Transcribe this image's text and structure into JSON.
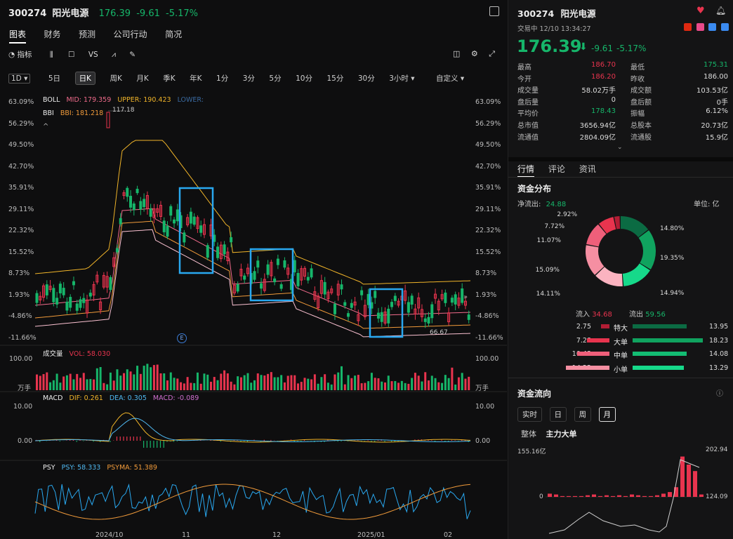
{
  "header": {
    "code": "300274",
    "name": "阳光电源",
    "price": "176.39",
    "change": "-9.61",
    "pct": "-5.17%"
  },
  "tabs": [
    "图表",
    "财务",
    "预测",
    "公司行动",
    "简况"
  ],
  "toolbar": {
    "indicator": "指标",
    "vs": "VS"
  },
  "timeframes": [
    "5日",
    "日K",
    "周K",
    "月K",
    "季K",
    "年K",
    "1分",
    "3分",
    "5分",
    "10分",
    "15分",
    "30分",
    "3小时",
    "自定义"
  ],
  "boll": {
    "label": "BOLL",
    "mid": "MID: 179.359",
    "upper": "UPPER: 190.423",
    "lower": "LOWER:"
  },
  "bbi": {
    "label": "BBI",
    "value": "BBI: 181.218"
  },
  "price_ticks": [
    "63.09%",
    "56.29%",
    "49.50%",
    "42.70%",
    "35.91%",
    "29.11%",
    "22.32%",
    "15.52%",
    "8.73%",
    "1.93%",
    "-4.86%",
    "-11.66%"
  ],
  "high_label": "117.18",
  "low_label": "66.67",
  "event_marker": "E",
  "volume": {
    "label": "成交量",
    "vol": "VOL: 58.030",
    "top": "100.00",
    "unit": "万手"
  },
  "macd": {
    "label": "MACD",
    "dif": "DIF: 0.261",
    "dea": "DEA: 0.305",
    "macd": "MACD: -0.089",
    "top": "10.00",
    "zero": "0.00"
  },
  "psy": {
    "label": "PSY",
    "psy": "PSY: 58.333",
    "psyma": "PSYMA: 51.389"
  },
  "x_labels": [
    "2024/10",
    "11",
    "12",
    "2025/01",
    "02"
  ],
  "quote": {
    "status": "交易中 12/10 13:34:27",
    "rows": [
      {
        "l1": "最高",
        "v1": "186.70",
        "l2": "最低",
        "v2": "175.31"
      },
      {
        "l1": "今开",
        "v1": "186.20",
        "l2": "昨收",
        "v2": "186.00"
      },
      {
        "l1": "成交量",
        "v1": "58.02万手",
        "l2": "成交额",
        "v2": "103.53亿"
      },
      {
        "l1": "盘后量",
        "v1": "0",
        "l2": "盘后额",
        "v2": "0手"
      },
      {
        "l1": "平均价",
        "v1": "178.43",
        "l2": "振幅",
        "v2": "6.12%"
      },
      {
        "l1": "总市值",
        "v1": "3656.94亿",
        "l2": "总股本",
        "v2": "20.73亿"
      },
      {
        "l1": "流通值",
        "v1": "2804.09亿",
        "l2": "流通股",
        "v2": "15.9亿"
      }
    ]
  },
  "right_tabs": [
    "行情",
    "评论",
    "资讯"
  ],
  "fund": {
    "title": "资金分布",
    "net_label": "净流出:",
    "net_value": "24.88",
    "unit": "单位: 亿",
    "donut_left": [
      "2.92%",
      "7.72%",
      "11.07%",
      "15.09%",
      "14.11%"
    ],
    "donut_right": [
      "14.80%",
      "19.35%",
      "14.94%"
    ],
    "in_label": "流入",
    "in_value": "34.68",
    "out_label": "流出",
    "out_value": "59.56",
    "bars": [
      {
        "in": "2.75",
        "label": "特大",
        "out": "13.95"
      },
      {
        "in": "7.28",
        "label": "大单",
        "out": "18.23"
      },
      {
        "in": "10.43",
        "label": "中单",
        "out": "14.08"
      },
      {
        "in": "14.22",
        "label": "小单",
        "out": "13.29"
      }
    ]
  },
  "flow": {
    "title": "资金流向",
    "periods": [
      "实时",
      "日",
      "周",
      "月"
    ],
    "sub": [
      "整体",
      "主力大单"
    ],
    "y_left_top": "155.16亿",
    "y_left_zero": "0",
    "y_right_top": "202.94",
    "y_right_mid": "124.09"
  }
}
